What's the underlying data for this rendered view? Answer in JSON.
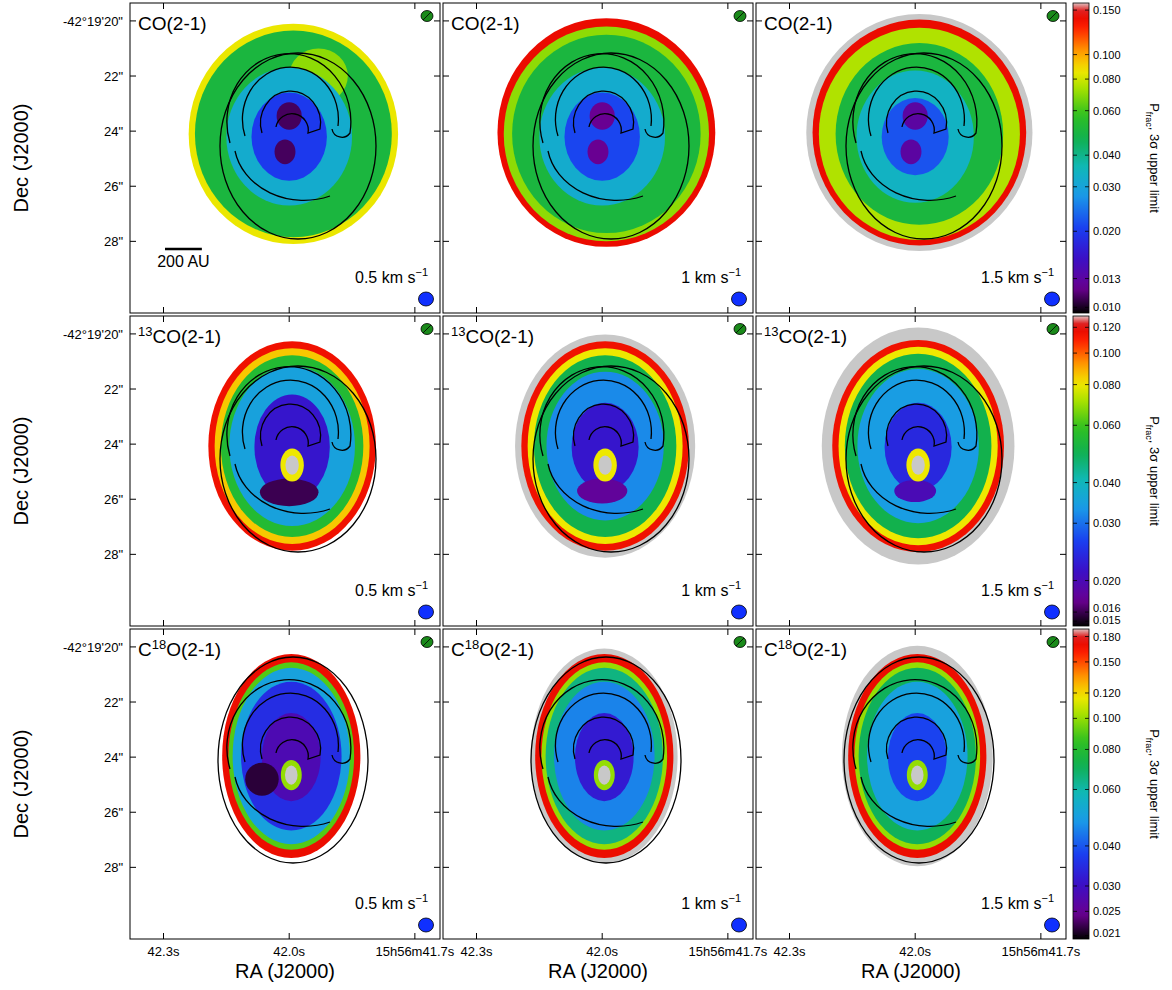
{
  "chart_data": {
    "type": "map",
    "x_label": "RA (J2000)",
    "y_label": "Dec (J2000)",
    "xlim": [
      42.38,
      41.64
    ],
    "ylim": [
      19.35,
      30.6
    ],
    "xticks": [
      {
        "value": 42.3,
        "label": "42.3s"
      },
      {
        "value": 42.0,
        "label": "42.0s"
      },
      {
        "value": 41.7,
        "label": "15h56m41.7s"
      }
    ],
    "yticks": [
      {
        "value": 20,
        "label": "-42°19'20\""
      },
      {
        "value": 22,
        "label": "22\""
      },
      {
        "value": 24,
        "label": "24\""
      },
      {
        "value": 26,
        "label": "26\""
      },
      {
        "value": 28,
        "label": "28\""
      }
    ],
    "scale_bar": {
      "label": "200 AU",
      "length": 0.088
    },
    "colorbar_label": [
      "P",
      "frac",
      ", 3σ upper limit"
    ],
    "rows": [
      {
        "title": [
          {
            "text": "CO(2-1)"
          }
        ],
        "colorbar": {
          "range": [
            0.0095,
            0.16
          ],
          "log": true,
          "ticks": [
            {
              "value": 0.01,
              "label": "0.010"
            },
            0.013,
            {
              "value": 0.02,
              "label": "0.020"
            },
            {
              "value": 0.03,
              "label": "0.030"
            },
            {
              "value": 0.04,
              "label": "0.040"
            },
            {
              "value": 0.06,
              "label": "0.060"
            },
            {
              "value": 0.08,
              "label": "0.080"
            },
            {
              "value": 0.1,
              "label": "0.100"
            },
            {
              "value": 0.15,
              "label": "0.150"
            }
          ]
        },
        "panels": [
          {
            "label": "0.5 km s",
            "label_sup": "−1",
            "regions": [
              {
                "ra": 41.99,
                "dec": 24.1,
                "ra_radius": 0.25,
                "dec_radius": 4.0,
                "value": 0.085
              },
              {
                "ra": 41.99,
                "dec": 24.1,
                "ra_radius": 0.235,
                "dec_radius": 3.75,
                "value": 0.05
              },
              {
                "ra": 41.93,
                "dec": 22.0,
                "ra_radius": 0.07,
                "dec_radius": 1.0,
                "value": 0.07
              },
              {
                "ra": 42.0,
                "dec": 24.2,
                "ra_radius": 0.15,
                "dec_radius": 2.5,
                "value": 0.032
              },
              {
                "ra": 42.0,
                "dec": 24.2,
                "ra_radius": 0.09,
                "dec_radius": 1.6,
                "value": 0.02
              },
              {
                "ra": 42.0,
                "dec": 23.45,
                "ra_radius": 0.03,
                "dec_radius": 0.5,
                "value": 0.011
              },
              {
                "ra": 42.01,
                "dec": 24.75,
                "ra_radius": 0.025,
                "dec_radius": 0.45,
                "value": 0.011
              }
            ]
          },
          {
            "label": "1 km s",
            "label_sup": "−1",
            "regions": [
              {
                "ra": 41.99,
                "dec": 24.05,
                "ra_radius": 0.26,
                "dec_radius": 4.15,
                "value": 0.14
              },
              {
                "ra": 41.99,
                "dec": 24.1,
                "ra_radius": 0.245,
                "dec_radius": 3.9,
                "value": 0.07
              },
              {
                "ra": 41.99,
                "dec": 24.1,
                "ra_radius": 0.225,
                "dec_radius": 3.6,
                "value": 0.05
              },
              {
                "ra": 42.0,
                "dec": 24.2,
                "ra_radius": 0.15,
                "dec_radius": 2.5,
                "value": 0.032
              },
              {
                "ra": 42.0,
                "dec": 24.2,
                "ra_radius": 0.09,
                "dec_radius": 1.6,
                "value": 0.021
              },
              {
                "ra": 42.0,
                "dec": 23.45,
                "ra_radius": 0.03,
                "dec_radius": 0.5,
                "value": 0.012
              },
              {
                "ra": 42.01,
                "dec": 24.75,
                "ra_radius": 0.025,
                "dec_radius": 0.45,
                "value": 0.012
              }
            ]
          },
          {
            "label": "1.5 km s",
            "label_sup": "−1",
            "regions": [
              {
                "ra": 41.99,
                "dec": 24.05,
                "ra_radius": 0.27,
                "dec_radius": 4.3,
                "value": 0.2
              },
              {
                "ra": 41.99,
                "dec": 24.05,
                "ra_radius": 0.255,
                "dec_radius": 4.1,
                "value": 0.14
              },
              {
                "ra": 41.99,
                "dec": 24.1,
                "ra_radius": 0.24,
                "dec_radius": 3.85,
                "value": 0.075
              },
              {
                "ra": 41.99,
                "dec": 24.1,
                "ra_radius": 0.2,
                "dec_radius": 3.3,
                "value": 0.05
              },
              {
                "ra": 42.0,
                "dec": 24.2,
                "ra_radius": 0.14,
                "dec_radius": 2.4,
                "value": 0.034
              },
              {
                "ra": 42.0,
                "dec": 24.2,
                "ra_radius": 0.08,
                "dec_radius": 1.4,
                "value": 0.022
              },
              {
                "ra": 42.0,
                "dec": 23.45,
                "ra_radius": 0.03,
                "dec_radius": 0.5,
                "value": 0.013
              },
              {
                "ra": 42.01,
                "dec": 24.75,
                "ra_radius": 0.025,
                "dec_radius": 0.45,
                "value": 0.013
              }
            ]
          }
        ]
      },
      {
        "title": [
          {
            "text": "13",
            "sup": true
          },
          {
            "text": "CO(2-1)"
          }
        ],
        "colorbar": {
          "range": [
            0.0145,
            0.13
          ],
          "log": true,
          "ticks": [
            0.015,
            0.016,
            {
              "value": 0.02,
              "label": "0.020"
            },
            {
              "value": 0.03,
              "label": "0.030"
            },
            {
              "value": 0.04,
              "label": "0.040"
            },
            {
              "value": 0.06,
              "label": "0.060"
            },
            {
              "value": 0.08,
              "label": "0.080"
            },
            {
              "value": 0.1,
              "label": "0.100"
            },
            {
              "value": 0.12,
              "label": "0.120"
            }
          ]
        },
        "panels": [
          {
            "label": "0.5 km s",
            "label_sup": "−1",
            "regions": [
              {
                "ra": 41.993,
                "dec": 24.07,
                "ra_radius": 0.2,
                "dec_radius": 3.8,
                "value": 0.115
              },
              {
                "ra": 41.993,
                "dec": 24.07,
                "ra_radius": 0.185,
                "dec_radius": 3.55,
                "value": 0.085
              },
              {
                "ra": 41.993,
                "dec": 24.07,
                "ra_radius": 0.17,
                "dec_radius": 3.3,
                "value": 0.055
              },
              {
                "ra": 41.993,
                "dec": 24.07,
                "ra_radius": 0.15,
                "dec_radius": 2.9,
                "value": 0.035
              },
              {
                "ra": 41.993,
                "dec": 24.1,
                "ra_radius": 0.09,
                "dec_radius": 1.9,
                "value": 0.022
              },
              {
                "ra": 42.0,
                "dec": 25.75,
                "ra_radius": 0.07,
                "dec_radius": 0.5,
                "value": 0.016
              },
              {
                "ra": 41.993,
                "dec": 24.76,
                "ra_radius": 0.028,
                "dec_radius": 0.6,
                "value": 0.08
              },
              {
                "ra": 41.993,
                "dec": 24.76,
                "ra_radius": 0.016,
                "dec_radius": 0.35,
                "value": 0.2
              }
            ]
          },
          {
            "label": "1 km s",
            "label_sup": "−1",
            "regions": [
              {
                "ra": 41.993,
                "dec": 24.07,
                "ra_radius": 0.215,
                "dec_radius": 4.05,
                "value": 0.2
              },
              {
                "ra": 41.993,
                "dec": 24.07,
                "ra_radius": 0.2,
                "dec_radius": 3.8,
                "value": 0.115
              },
              {
                "ra": 41.993,
                "dec": 24.07,
                "ra_radius": 0.185,
                "dec_radius": 3.55,
                "value": 0.08
              },
              {
                "ra": 41.993,
                "dec": 24.07,
                "ra_radius": 0.17,
                "dec_radius": 3.3,
                "value": 0.05
              },
              {
                "ra": 41.993,
                "dec": 24.07,
                "ra_radius": 0.14,
                "dec_radius": 2.7,
                "value": 0.032
              },
              {
                "ra": 41.993,
                "dec": 24.1,
                "ra_radius": 0.08,
                "dec_radius": 1.6,
                "value": 0.022
              },
              {
                "ra": 42.0,
                "dec": 25.7,
                "ra_radius": 0.06,
                "dec_radius": 0.45,
                "value": 0.018
              },
              {
                "ra": 41.993,
                "dec": 24.76,
                "ra_radius": 0.028,
                "dec_radius": 0.6,
                "value": 0.08
              },
              {
                "ra": 41.993,
                "dec": 24.76,
                "ra_radius": 0.016,
                "dec_radius": 0.35,
                "value": 0.2
              }
            ]
          },
          {
            "label": "1.5 km s",
            "label_sup": "−1",
            "regions": [
              {
                "ra": 41.993,
                "dec": 24.07,
                "ra_radius": 0.23,
                "dec_radius": 4.3,
                "value": 0.2
              },
              {
                "ra": 41.993,
                "dec": 24.07,
                "ra_radius": 0.205,
                "dec_radius": 3.85,
                "value": 0.115
              },
              {
                "ra": 41.993,
                "dec": 24.07,
                "ra_radius": 0.19,
                "dec_radius": 3.6,
                "value": 0.08
              },
              {
                "ra": 41.993,
                "dec": 24.07,
                "ra_radius": 0.175,
                "dec_radius": 3.35,
                "value": 0.05
              },
              {
                "ra": 41.993,
                "dec": 24.07,
                "ra_radius": 0.145,
                "dec_radius": 2.8,
                "value": 0.034
              },
              {
                "ra": 41.993,
                "dec": 24.1,
                "ra_radius": 0.08,
                "dec_radius": 1.6,
                "value": 0.024
              },
              {
                "ra": 42.0,
                "dec": 25.7,
                "ra_radius": 0.05,
                "dec_radius": 0.4,
                "value": 0.02
              },
              {
                "ra": 41.993,
                "dec": 24.76,
                "ra_radius": 0.028,
                "dec_radius": 0.6,
                "value": 0.08
              },
              {
                "ra": 41.993,
                "dec": 24.76,
                "ra_radius": 0.016,
                "dec_radius": 0.35,
                "value": 0.2
              }
            ]
          }
        ]
      },
      {
        "title": [
          {
            "text": "C"
          },
          {
            "text": "18",
            "sup": true
          },
          {
            "text": "O(2-1)"
          }
        ],
        "colorbar": {
          "range": [
            0.0205,
            0.19
          ],
          "log": true,
          "ticks": [
            0.021,
            0.025,
            {
              "value": 0.03,
              "label": "0.030"
            },
            {
              "value": 0.04,
              "label": "0.040"
            },
            {
              "value": 0.06,
              "label": "0.060"
            },
            {
              "value": 0.08,
              "label": "0.080"
            },
            {
              "value": 0.1,
              "label": "0.100"
            },
            {
              "value": 0.12,
              "label": "0.120"
            },
            {
              "value": 0.15,
              "label": "0.150"
            },
            {
              "value": 0.18,
              "label": "0.180"
            }
          ]
        },
        "panels": [
          {
            "label": "0.5 km s",
            "label_sup": "−1",
            "regions": [
              {
                "ra": 41.995,
                "dec": 23.96,
                "ra_radius": 0.165,
                "dec_radius": 3.7,
                "value": 0.17
              },
              {
                "ra": 41.995,
                "dec": 23.96,
                "ra_radius": 0.15,
                "dec_radius": 3.4,
                "value": 0.09
              },
              {
                "ra": 41.995,
                "dec": 23.96,
                "ra_radius": 0.14,
                "dec_radius": 3.2,
                "value": 0.05
              },
              {
                "ra": 41.995,
                "dec": 23.96,
                "ra_radius": 0.12,
                "dec_radius": 2.7,
                "value": 0.035
              },
              {
                "ra": 41.995,
                "dec": 24.0,
                "ra_radius": 0.07,
                "dec_radius": 1.6,
                "value": 0.028
              },
              {
                "ra": 42.065,
                "dec": 24.8,
                "ra_radius": 0.04,
                "dec_radius": 0.6,
                "value": 0.022
              },
              {
                "ra": 41.995,
                "dec": 24.65,
                "ra_radius": 0.025,
                "dec_radius": 0.55,
                "value": 0.1
              },
              {
                "ra": 41.995,
                "dec": 24.65,
                "ra_radius": 0.015,
                "dec_radius": 0.35,
                "value": 0.25
              }
            ]
          },
          {
            "label": "1 km s",
            "label_sup": "−1",
            "regions": [
              {
                "ra": 41.995,
                "dec": 23.96,
                "ra_radius": 0.175,
                "dec_radius": 3.9,
                "value": 0.25
              },
              {
                "ra": 41.995,
                "dec": 23.96,
                "ra_radius": 0.165,
                "dec_radius": 3.7,
                "value": 0.17
              },
              {
                "ra": 41.995,
                "dec": 23.96,
                "ra_radius": 0.15,
                "dec_radius": 3.4,
                "value": 0.1
              },
              {
                "ra": 41.995,
                "dec": 23.96,
                "ra_radius": 0.14,
                "dec_radius": 3.2,
                "value": 0.065
              },
              {
                "ra": 41.995,
                "dec": 23.96,
                "ra_radius": 0.12,
                "dec_radius": 2.7,
                "value": 0.045
              },
              {
                "ra": 41.995,
                "dec": 24.0,
                "ra_radius": 0.07,
                "dec_radius": 1.6,
                "value": 0.032
              },
              {
                "ra": 41.995,
                "dec": 24.65,
                "ra_radius": 0.025,
                "dec_radius": 0.55,
                "value": 0.1
              },
              {
                "ra": 41.995,
                "dec": 24.65,
                "ra_radius": 0.015,
                "dec_radius": 0.35,
                "value": 0.25
              }
            ]
          },
          {
            "label": "1.5 km s",
            "label_sup": "−1",
            "regions": [
              {
                "ra": 41.995,
                "dec": 23.96,
                "ra_radius": 0.18,
                "dec_radius": 4.0,
                "value": 0.25
              },
              {
                "ra": 41.995,
                "dec": 23.96,
                "ra_radius": 0.165,
                "dec_radius": 3.7,
                "value": 0.17
              },
              {
                "ra": 41.995,
                "dec": 23.96,
                "ra_radius": 0.15,
                "dec_radius": 3.4,
                "value": 0.1
              },
              {
                "ra": 41.995,
                "dec": 23.96,
                "ra_radius": 0.14,
                "dec_radius": 3.2,
                "value": 0.07
              },
              {
                "ra": 41.995,
                "dec": 23.96,
                "ra_radius": 0.12,
                "dec_radius": 2.7,
                "value": 0.05
              },
              {
                "ra": 41.995,
                "dec": 24.0,
                "ra_radius": 0.07,
                "dec_radius": 1.6,
                "value": 0.038
              },
              {
                "ra": 41.995,
                "dec": 24.65,
                "ra_radius": 0.025,
                "dec_radius": 0.55,
                "value": 0.1
              },
              {
                "ra": 41.995,
                "dec": 24.65,
                "ra_radius": 0.015,
                "dec_radius": 0.35,
                "value": 0.25
              }
            ]
          }
        ]
      }
    ]
  }
}
